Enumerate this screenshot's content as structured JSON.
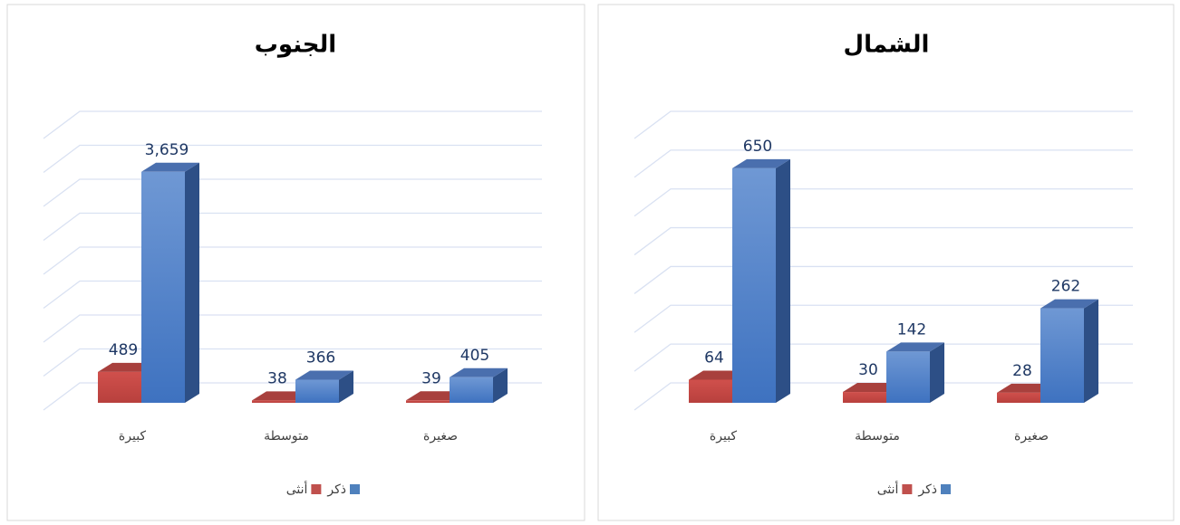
{
  "chart_data": [
    {
      "type": "bar3d",
      "title": "الجنوب",
      "categories": [
        "كبيرة",
        "متوسطة",
        "صغيرة"
      ],
      "series": [
        {
          "name": "ذكر",
          "color": "#4f81bd",
          "values": [
            3659,
            366,
            405
          ],
          "value_labels": [
            "3,659",
            "366",
            "405"
          ]
        },
        {
          "name": "أنثى",
          "color": "#c0504d",
          "values": [
            489,
            38,
            39
          ]
        }
      ],
      "ylim": [
        0,
        4000
      ],
      "yticks": [
        0,
        500,
        1000,
        1500,
        2000,
        2500,
        3000,
        3500,
        4000
      ],
      "grid": true
    },
    {
      "type": "bar3d",
      "title": "الشمال",
      "categories": [
        "كبيرة",
        "متوسطة",
        "صغيرة"
      ],
      "series": [
        {
          "name": "ذكر",
          "color": "#4f81bd",
          "values": [
            650,
            142,
            262
          ]
        },
        {
          "name": "أنثى",
          "color": "#c0504d",
          "values": [
            64,
            30,
            28
          ]
        }
      ],
      "ylim": [
        0,
        700
      ],
      "yticks": [
        0,
        100,
        200,
        300,
        400,
        500,
        600,
        700
      ],
      "grid": true
    }
  ]
}
